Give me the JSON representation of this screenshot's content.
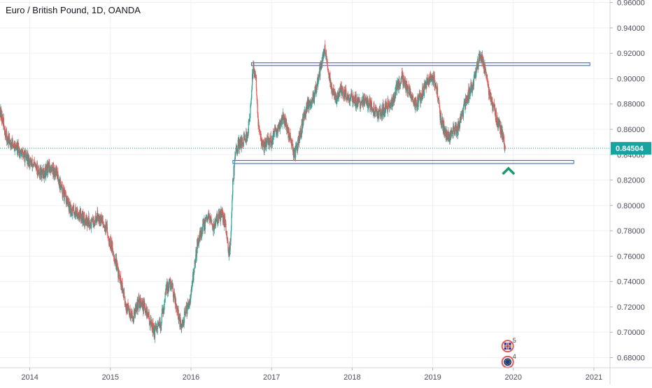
{
  "chart_data": {
    "type": "candlestick",
    "title": "Euro / British Pound, 1D, OANDA",
    "symbol": "EURGBP",
    "interval": "1D",
    "exchange": "OANDA",
    "current_price": 0.84504,
    "current_price_label": "0.84504",
    "ylim": [
      0.672,
      0.962
    ],
    "y_ticks": [
      "0.96000",
      "0.94000",
      "0.92000",
      "0.90000",
      "0.88000",
      "0.86000",
      "0.84000",
      "0.82000",
      "0.80000",
      "0.78000",
      "0.76000",
      "0.74000",
      "0.72000",
      "0.70000",
      "0.68000"
    ],
    "y_tick_values": [
      0.96,
      0.94,
      0.92,
      0.9,
      0.88,
      0.86,
      0.84,
      0.82,
      0.8,
      0.78,
      0.76,
      0.74,
      0.72,
      0.7,
      0.68
    ],
    "xlim": [
      2013.63,
      2021.2
    ],
    "x_ticks": [
      "2014",
      "2015",
      "2016",
      "2017",
      "2018",
      "2019",
      "2020",
      "2021"
    ],
    "x_tick_values": [
      2014,
      2015,
      2016,
      2017,
      2018,
      2019,
      2020,
      2021
    ],
    "grid": true,
    "colors": {
      "up": "#26a69a",
      "down": "#ef5350",
      "zone_border": "#3a5bbf",
      "price_line": "#18a3a3",
      "arrow": "#1a9870"
    },
    "price_path": [
      [
        2013.63,
        0.875
      ],
      [
        2013.72,
        0.852
      ],
      [
        2013.8,
        0.848
      ],
      [
        2013.88,
        0.842
      ],
      [
        2013.95,
        0.838
      ],
      [
        2014.05,
        0.831
      ],
      [
        2014.15,
        0.825
      ],
      [
        2014.25,
        0.83
      ],
      [
        2014.33,
        0.826
      ],
      [
        2014.4,
        0.812
      ],
      [
        2014.5,
        0.797
      ],
      [
        2014.6,
        0.794
      ],
      [
        2014.68,
        0.789
      ],
      [
        2014.78,
        0.786
      ],
      [
        2014.85,
        0.793
      ],
      [
        2014.95,
        0.782
      ],
      [
        2015.05,
        0.76
      ],
      [
        2015.13,
        0.738
      ],
      [
        2015.2,
        0.72
      ],
      [
        2015.28,
        0.712
      ],
      [
        2015.35,
        0.724
      ],
      [
        2015.42,
        0.72
      ],
      [
        2015.5,
        0.708
      ],
      [
        2015.55,
        0.7
      ],
      [
        2015.62,
        0.705
      ],
      [
        2015.7,
        0.735
      ],
      [
        2015.75,
        0.738
      ],
      [
        2015.8,
        0.728
      ],
      [
        2015.88,
        0.702
      ],
      [
        2015.93,
        0.715
      ],
      [
        2016.0,
        0.73
      ],
      [
        2016.08,
        0.77
      ],
      [
        2016.15,
        0.783
      ],
      [
        2016.22,
        0.79
      ],
      [
        2016.28,
        0.783
      ],
      [
        2016.33,
        0.79
      ],
      [
        2016.38,
        0.792
      ],
      [
        2016.43,
        0.785
      ],
      [
        2016.47,
        0.763
      ],
      [
        2016.49,
        0.77
      ],
      [
        2016.52,
        0.82
      ],
      [
        2016.56,
        0.845
      ],
      [
        2016.62,
        0.85
      ],
      [
        2016.66,
        0.852
      ],
      [
        2016.7,
        0.855
      ],
      [
        2016.74,
        0.875
      ],
      [
        2016.77,
        0.91
      ],
      [
        2016.8,
        0.905
      ],
      [
        2016.84,
        0.86
      ],
      [
        2016.9,
        0.845
      ],
      [
        2016.95,
        0.852
      ],
      [
        2017.0,
        0.85
      ],
      [
        2017.08,
        0.862
      ],
      [
        2017.15,
        0.87
      ],
      [
        2017.22,
        0.855
      ],
      [
        2017.28,
        0.84
      ],
      [
        2017.33,
        0.848
      ],
      [
        2017.4,
        0.87
      ],
      [
        2017.45,
        0.88
      ],
      [
        2017.52,
        0.885
      ],
      [
        2017.58,
        0.9
      ],
      [
        2017.62,
        0.912
      ],
      [
        2017.66,
        0.924
      ],
      [
        2017.7,
        0.91
      ],
      [
        2017.74,
        0.892
      ],
      [
        2017.8,
        0.885
      ],
      [
        2017.86,
        0.89
      ],
      [
        2017.92,
        0.888
      ],
      [
        2018.0,
        0.885
      ],
      [
        2018.08,
        0.88
      ],
      [
        2018.16,
        0.884
      ],
      [
        2018.24,
        0.878
      ],
      [
        2018.32,
        0.872
      ],
      [
        2018.4,
        0.876
      ],
      [
        2018.48,
        0.88
      ],
      [
        2018.56,
        0.893
      ],
      [
        2018.62,
        0.901
      ],
      [
        2018.68,
        0.893
      ],
      [
        2018.74,
        0.884
      ],
      [
        2018.8,
        0.879
      ],
      [
        2018.88,
        0.89
      ],
      [
        2018.96,
        0.9
      ],
      [
        2019.0,
        0.903
      ],
      [
        2019.05,
        0.892
      ],
      [
        2019.1,
        0.868
      ],
      [
        2019.15,
        0.858
      ],
      [
        2019.2,
        0.853
      ],
      [
        2019.25,
        0.858
      ],
      [
        2019.3,
        0.858
      ],
      [
        2019.36,
        0.87
      ],
      [
        2019.42,
        0.885
      ],
      [
        2019.48,
        0.893
      ],
      [
        2019.54,
        0.905
      ],
      [
        2019.58,
        0.92
      ],
      [
        2019.62,
        0.915
      ],
      [
        2019.66,
        0.905
      ],
      [
        2019.7,
        0.89
      ],
      [
        2019.74,
        0.88
      ],
      [
        2019.78,
        0.872
      ],
      [
        2019.82,
        0.863
      ],
      [
        2019.86,
        0.858
      ],
      [
        2019.9,
        0.845
      ]
    ],
    "zones": [
      {
        "name": "resistance-zone",
        "x_start": 2016.75,
        "x_end": 2020.95,
        "y_low": 0.9105,
        "y_high": 0.9125
      },
      {
        "name": "support-zone",
        "x_start": 2016.52,
        "x_end": 2020.75,
        "y_low": 0.833,
        "y_high": 0.8355
      }
    ],
    "arrow": {
      "x": 2019.94,
      "y_tip": 0.832,
      "direction": "up"
    },
    "event_markers": [
      {
        "name": "uk-flag-marker",
        "x": 2019.93,
        "y": 0.689,
        "count": "5"
      },
      {
        "name": "eu-flag-marker",
        "x": 2019.93,
        "y": 0.6765,
        "count": "4"
      }
    ]
  }
}
